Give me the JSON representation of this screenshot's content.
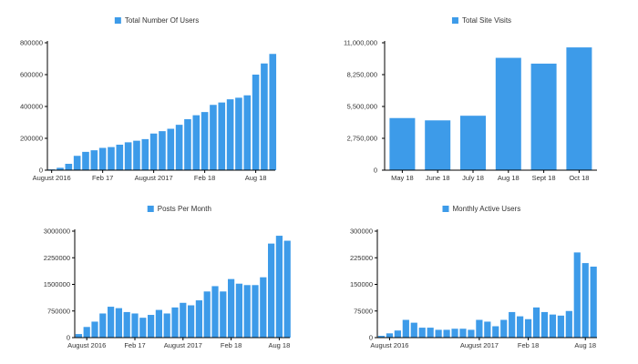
{
  "colors": {
    "bar": "#3d9be9",
    "axis": "#000000",
    "text": "#333333",
    "background": "#ffffff"
  },
  "chart_data": [
    {
      "type": "bar",
      "title": "",
      "legend": "Total Number Of Users",
      "legend_position": "top-center",
      "grid": false,
      "xlabel": "",
      "ylabel": "",
      "ylim": [
        0,
        800000
      ],
      "yticks": [
        "0",
        "200000",
        "400000",
        "600000",
        "800000"
      ],
      "yticks_values": [
        0,
        200000,
        400000,
        600000,
        800000
      ],
      "x_tick_labels": [
        {
          "label": "August 2016",
          "index": 0
        },
        {
          "label": "Feb 17",
          "index": 6
        },
        {
          "label": "August 2017",
          "index": 12
        },
        {
          "label": "Feb 18",
          "index": 18
        },
        {
          "label": "Aug 18",
          "index": 24
        }
      ],
      "values": [
        5000,
        15000,
        40000,
        90000,
        115000,
        125000,
        140000,
        145000,
        160000,
        175000,
        185000,
        195000,
        230000,
        245000,
        260000,
        285000,
        320000,
        345000,
        365000,
        410000,
        425000,
        445000,
        455000,
        470000,
        600000,
        670000,
        730000
      ]
    },
    {
      "type": "bar",
      "title": "",
      "legend": "Total Site Visits",
      "legend_position": "top-center",
      "grid": false,
      "xlabel": "",
      "ylabel": "",
      "ylim": [
        0,
        11000000
      ],
      "yticks": [
        "0",
        "2,750,000",
        "5,500,000",
        "8,250,000",
        "11,000,000"
      ],
      "yticks_values": [
        0,
        2750000,
        5500000,
        8250000,
        11000000
      ],
      "categories": [
        "May 18",
        "June 18",
        "July 18",
        "Aug 18",
        "Sept 18",
        "Oct 18"
      ],
      "values": [
        4500000,
        4300000,
        4700000,
        9700000,
        9200000,
        10600000
      ]
    },
    {
      "type": "bar",
      "title": "",
      "legend": "Posts Per Month",
      "legend_position": "top-center",
      "grid": false,
      "xlabel": "",
      "ylabel": "",
      "ylim": [
        0,
        3000000
      ],
      "yticks": [
        "0",
        "750000",
        "1500000",
        "2250000",
        "3000000"
      ],
      "yticks_values": [
        0,
        750000,
        1500000,
        2250000,
        3000000
      ],
      "x_tick_labels": [
        {
          "label": "August 2016",
          "index": 1
        },
        {
          "label": "Feb 17",
          "index": 7
        },
        {
          "label": "August 2017",
          "index": 13
        },
        {
          "label": "Feb 18",
          "index": 19
        },
        {
          "label": "Aug 18",
          "index": 25
        }
      ],
      "values": [
        100000,
        300000,
        450000,
        680000,
        870000,
        830000,
        720000,
        680000,
        560000,
        640000,
        780000,
        680000,
        850000,
        980000,
        910000,
        1050000,
        1300000,
        1450000,
        1300000,
        1650000,
        1520000,
        1480000,
        1480000,
        1700000,
        2650000,
        2870000,
        2730000
      ]
    },
    {
      "type": "bar",
      "title": "",
      "legend": "Monthly Active Users",
      "legend_position": "top-center",
      "grid": false,
      "xlabel": "",
      "ylabel": "",
      "ylim": [
        0,
        300000
      ],
      "yticks": [
        "0",
        "75000",
        "150000",
        "225000",
        "300000"
      ],
      "yticks_values": [
        0,
        75000,
        150000,
        225000,
        300000
      ],
      "x_tick_labels": [
        {
          "label": "August 2016",
          "index": 1
        },
        {
          "label": "Feb 18",
          "index": 18
        },
        {
          "label": "Aug 18",
          "index": 25
        },
        {
          "label": "August 2017",
          "index": 12
        }
      ],
      "values": [
        5000,
        12000,
        20000,
        50000,
        42000,
        28000,
        28000,
        22000,
        22000,
        25000,
        25000,
        22000,
        50000,
        45000,
        32000,
        50000,
        72000,
        60000,
        52000,
        85000,
        72000,
        65000,
        62000,
        75000,
        240000,
        210000,
        200000
      ]
    }
  ]
}
